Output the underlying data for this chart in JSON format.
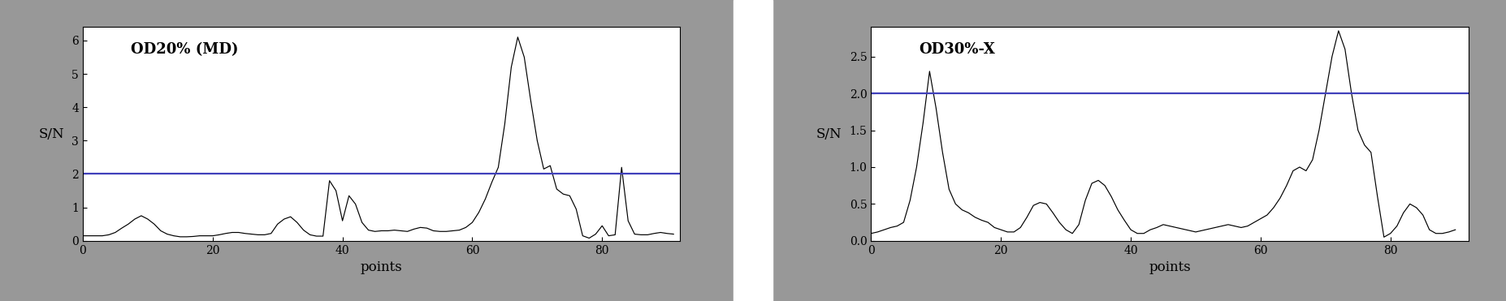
{
  "plot1": {
    "title": "OD20% (MD)",
    "xlabel": "points",
    "ylabel": "S/N",
    "hline": 2.0,
    "hline_color": "#4040bb",
    "xlim": [
      0,
      92
    ],
    "ylim": [
      0,
      6.4
    ],
    "yticks": [
      0,
      1,
      2,
      3,
      4,
      5,
      6
    ],
    "xticks": [
      0,
      20,
      40,
      60,
      80
    ],
    "line_color": "#000000",
    "y": [
      0.15,
      0.15,
      0.15,
      0.15,
      0.18,
      0.25,
      0.38,
      0.5,
      0.65,
      0.75,
      0.65,
      0.5,
      0.3,
      0.2,
      0.15,
      0.12,
      0.12,
      0.13,
      0.15,
      0.15,
      0.15,
      0.18,
      0.22,
      0.25,
      0.25,
      0.22,
      0.2,
      0.18,
      0.18,
      0.22,
      0.5,
      0.65,
      0.72,
      0.55,
      0.32,
      0.18,
      0.14,
      0.14,
      1.8,
      1.5,
      0.6,
      1.35,
      1.1,
      0.55,
      0.32,
      0.28,
      0.3,
      0.3,
      0.32,
      0.3,
      0.28,
      0.35,
      0.4,
      0.38,
      0.3,
      0.28,
      0.28,
      0.3,
      0.32,
      0.4,
      0.55,
      0.85,
      1.25,
      1.75,
      2.2,
      3.5,
      5.2,
      6.1,
      5.5,
      4.2,
      3.0,
      2.15,
      2.25,
      1.55,
      1.4,
      1.35,
      0.95,
      0.15,
      0.08,
      0.2,
      0.45,
      0.15,
      0.18,
      2.2,
      0.6,
      0.2,
      0.18,
      0.18,
      0.22,
      0.25,
      0.22,
      0.2
    ]
  },
  "plot2": {
    "title": "OD30%-X",
    "xlabel": "points",
    "ylabel": "S/N",
    "hline": 2.0,
    "hline_color": "#4040bb",
    "xlim": [
      0,
      92
    ],
    "ylim": [
      0,
      2.9
    ],
    "yticks": [
      0,
      0.5,
      1.0,
      1.5,
      2.0,
      2.5
    ],
    "xticks": [
      0,
      20,
      40,
      60,
      80
    ],
    "line_color": "#000000",
    "y": [
      0.1,
      0.12,
      0.15,
      0.18,
      0.2,
      0.25,
      0.55,
      1.0,
      1.6,
      2.3,
      1.8,
      1.2,
      0.7,
      0.5,
      0.42,
      0.38,
      0.32,
      0.28,
      0.25,
      0.18,
      0.15,
      0.12,
      0.12,
      0.18,
      0.32,
      0.48,
      0.52,
      0.5,
      0.38,
      0.25,
      0.15,
      0.1,
      0.22,
      0.55,
      0.78,
      0.82,
      0.75,
      0.6,
      0.42,
      0.28,
      0.15,
      0.1,
      0.1,
      0.15,
      0.18,
      0.22,
      0.2,
      0.18,
      0.16,
      0.14,
      0.12,
      0.14,
      0.16,
      0.18,
      0.2,
      0.22,
      0.2,
      0.18,
      0.2,
      0.25,
      0.3,
      0.35,
      0.45,
      0.58,
      0.75,
      0.95,
      1.0,
      0.95,
      1.1,
      1.5,
      2.0,
      2.5,
      2.85,
      2.6,
      2.0,
      1.5,
      1.3,
      1.2,
      0.6,
      0.05,
      0.1,
      0.2,
      0.38,
      0.5,
      0.45,
      0.35,
      0.15,
      0.1,
      0.1,
      0.12,
      0.15
    ]
  },
  "bg_color": "#989898",
  "plot_bg": "#ffffff",
  "title_fontsize": 13,
  "label_fontsize": 12,
  "tick_fontsize": 10,
  "ylabel_fontsize": 12
}
